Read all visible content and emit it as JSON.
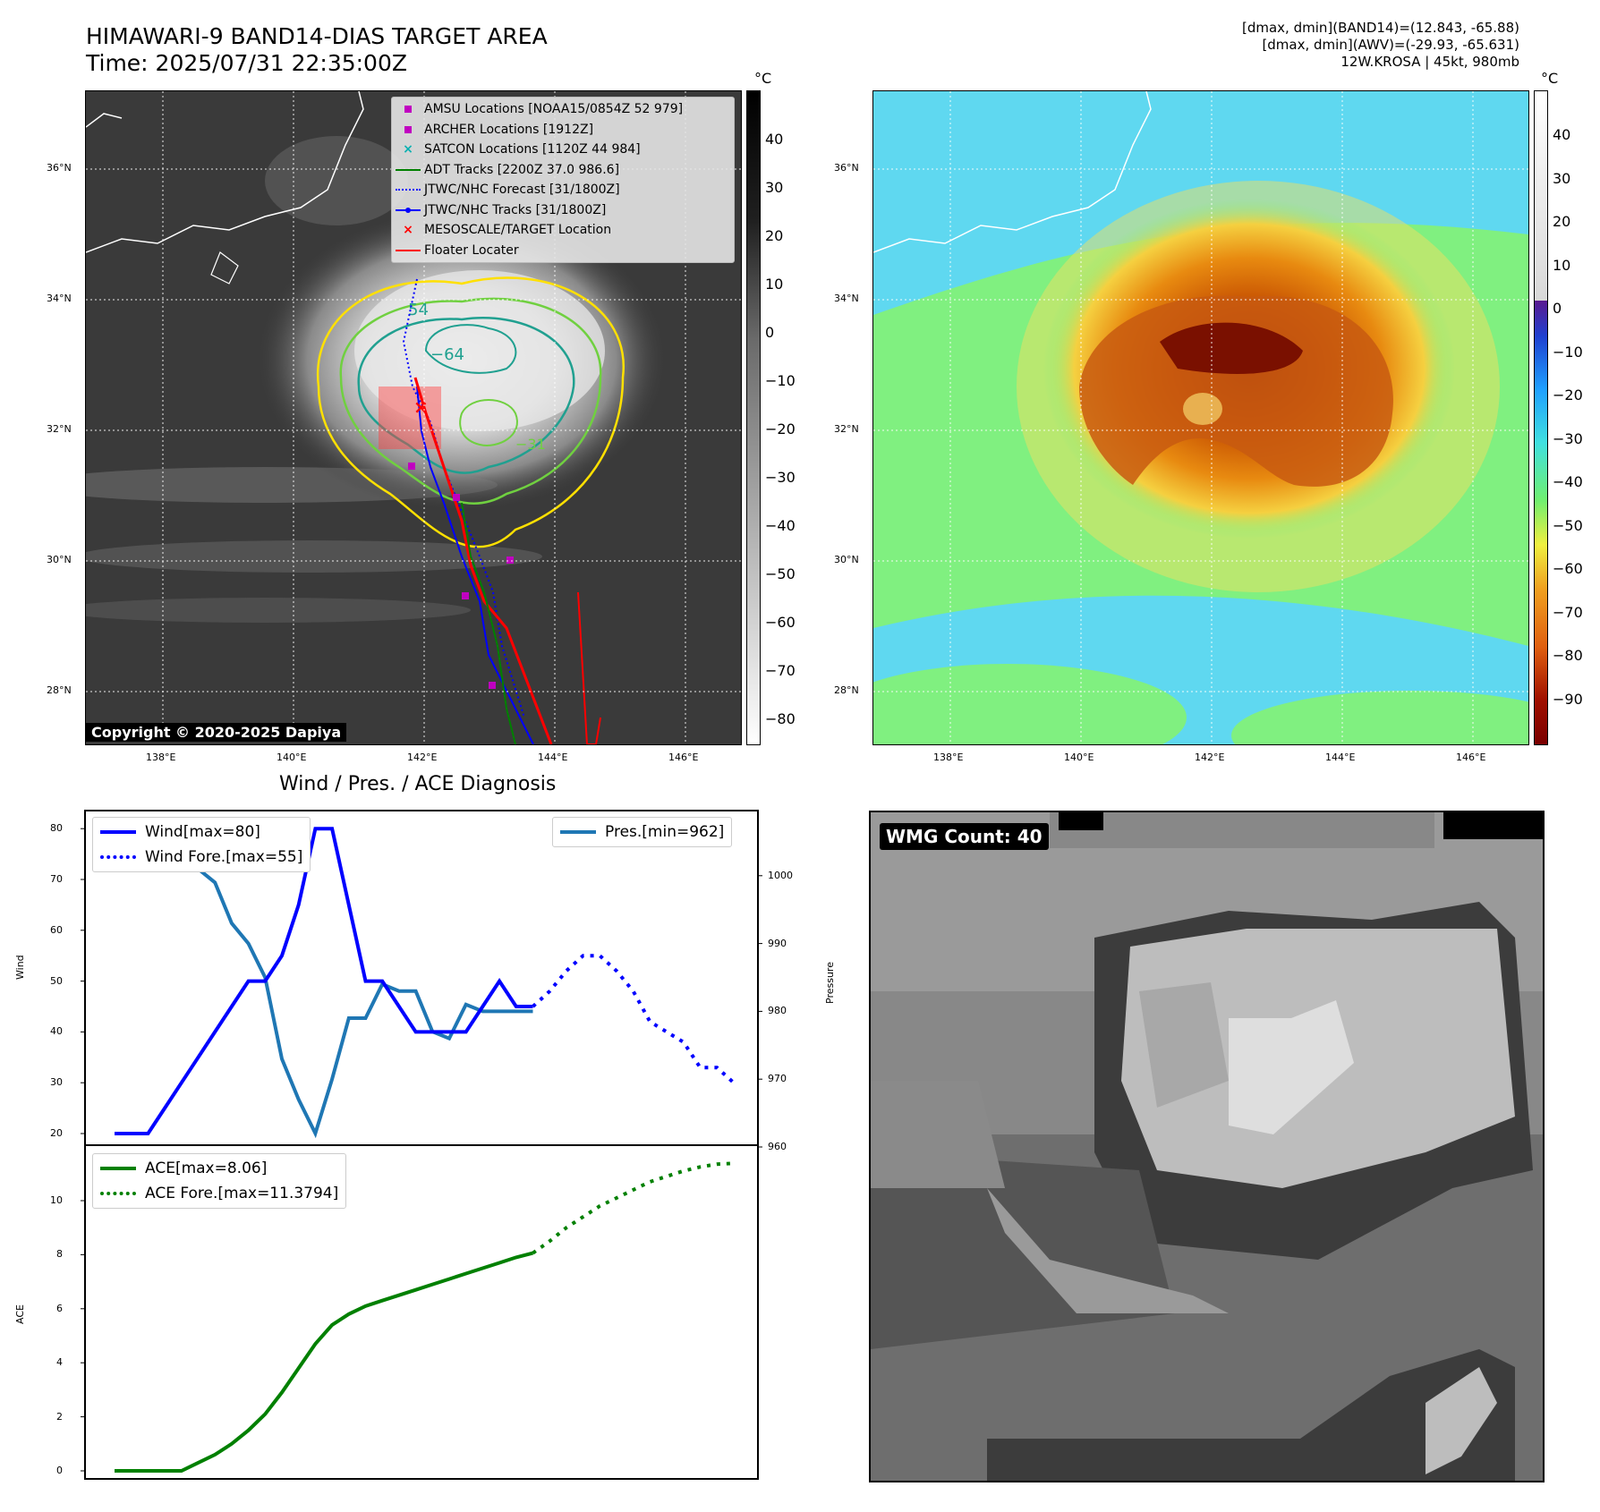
{
  "header": {
    "title_line1": "HIMAWARI-9 BAND14-DIAS TARGET AREA",
    "title_line2": "Time: 2025/07/31 22:35:00Z",
    "info_line1": "[dmax, dmin](BAND14)=(12.843, -65.88)",
    "info_line2": "[dmax, dmin](AWV)=(-29.93, -65.631)",
    "info_line3": "12W.KROSA | 45kt, 980mb"
  },
  "map_axes": {
    "lat_labels": [
      "36°N",
      "34°N",
      "32°N",
      "30°N",
      "28°N"
    ],
    "lon_labels": [
      "138°E",
      "140°E",
      "142°E",
      "144°E",
      "146°E"
    ]
  },
  "ir_panel": {
    "copyright": "Copyright © 2020-2025 Dapiya",
    "colorbar_unit": "°C",
    "colorbar_ticks": [
      "40",
      "30",
      "20",
      "10",
      "0",
      "−10",
      "−20",
      "−30",
      "−40",
      "−50",
      "−60",
      "−70",
      "−80"
    ],
    "contour_labels": [
      "54",
      "−64",
      "−31"
    ],
    "legend": [
      {
        "label": "AMSU Locations [NOAA15/0854Z 52 979]",
        "symbol": "square",
        "color": "#c000c0"
      },
      {
        "label": "ARCHER Locations [1912Z]",
        "symbol": "square",
        "color": "#c000c0"
      },
      {
        "label": "SATCON Locations [1120Z 44 984]",
        "symbol": "x",
        "color": "#00b0b0"
      },
      {
        "label": "ADT Tracks [2200Z 37.0 986.6]",
        "symbol": "line",
        "color": "#008000"
      },
      {
        "label": "JTWC/NHC Forecast [31/1800Z]",
        "symbol": "dotted",
        "color": "#0000ff"
      },
      {
        "label": "JTWC/NHC Tracks [31/1800Z]",
        "symbol": "line-dot",
        "color": "#0000ff"
      },
      {
        "label": "MESOSCALE/TARGET Location",
        "symbol": "x",
        "color": "#ff0000"
      },
      {
        "label": "Floater Locater",
        "symbol": "line",
        "color": "#ff0000"
      }
    ]
  },
  "awv_panel": {
    "colorbar_unit": "°C",
    "colorbar_ticks": [
      "40",
      "30",
      "20",
      "10",
      "0",
      "−10",
      "−20",
      "−30",
      "−40",
      "−50",
      "−60",
      "−70",
      "−80",
      "−90"
    ]
  },
  "diagnosis": {
    "title": "Wind / Pres. / ACE Diagnosis",
    "wind_axis_label": "Wind",
    "pressure_axis_label": "Pressure",
    "ace_axis_label": "ACE",
    "wind_ticks": [
      "80",
      "70",
      "60",
      "50",
      "40",
      "30",
      "20"
    ],
    "pressure_ticks": [
      "1000",
      "990",
      "980",
      "970",
      "960"
    ],
    "ace_ticks": [
      "10",
      "8",
      "6",
      "4",
      "2",
      "0"
    ],
    "legend_wind": "Wind[max=80]",
    "legend_wind_fore": "Wind Fore.[max=55]",
    "legend_pres": "Pres.[min=962]",
    "legend_ace": "ACE[max=8.06]",
    "legend_ace_fore": "ACE Fore.[max=11.3794]"
  },
  "wmg_panel": {
    "label": "WMG Count: 40"
  },
  "chart_data": [
    {
      "type": "line",
      "title": "Wind / Pres. / ACE Diagnosis",
      "ylabel": "Wind",
      "ylim": [
        18,
        82
      ],
      "series": [
        {
          "name": "Wind[max=80]",
          "color": "#0000ff",
          "style": "solid",
          "x": [
            0,
            1,
            2,
            3,
            4,
            5,
            6,
            7,
            8,
            9,
            10,
            11,
            12,
            13,
            14,
            15,
            16,
            17,
            18,
            19,
            20,
            21,
            22,
            23,
            24,
            25
          ],
          "values": [
            20,
            20,
            20,
            25,
            30,
            35,
            40,
            45,
            50,
            50,
            55,
            65,
            80,
            80,
            65,
            50,
            50,
            45,
            40,
            40,
            40,
            40,
            45,
            50,
            45,
            45
          ]
        },
        {
          "name": "Wind Fore.[max=55]",
          "color": "#0000ff",
          "style": "dotted",
          "x": [
            25,
            26,
            27,
            28,
            29,
            30,
            31,
            32,
            33,
            34,
            35,
            36,
            37
          ],
          "values": [
            45,
            48,
            52,
            55,
            55,
            52,
            48,
            42,
            40,
            38,
            33,
            33,
            30
          ]
        }
      ]
    },
    {
      "type": "line",
      "ylabel": "Pressure",
      "ylim": [
        960,
        1010
      ],
      "series": [
        {
          "name": "Pres.[min=962]",
          "color": "#1f77b4",
          "style": "solid",
          "x": [
            0,
            1,
            2,
            3,
            4,
            5,
            6,
            7,
            8,
            9,
            10,
            11,
            12,
            13,
            14,
            15,
            16,
            17,
            18,
            19,
            20,
            21,
            22,
            23,
            24,
            25
          ],
          "values": [
            1007,
            1007,
            1006,
            1005,
            1003,
            1001,
            999,
            993,
            990,
            985,
            973,
            967,
            962,
            970,
            979,
            979,
            984,
            983,
            983,
            977,
            976,
            981,
            980,
            980,
            980,
            980
          ]
        }
      ]
    },
    {
      "type": "line",
      "ylabel": "ACE",
      "ylim": [
        -0.5,
        12
      ],
      "series": [
        {
          "name": "ACE[max=8.06]",
          "color": "#008000",
          "style": "solid",
          "x": [
            0,
            2,
            4,
            5,
            6,
            7,
            8,
            9,
            10,
            11,
            12,
            13,
            14,
            15,
            16,
            17,
            18,
            19,
            20,
            21,
            22,
            23,
            24,
            25
          ],
          "values": [
            0,
            0,
            0,
            0.3,
            0.6,
            1.0,
            1.5,
            2.1,
            2.9,
            3.8,
            4.7,
            5.4,
            5.8,
            6.1,
            6.3,
            6.5,
            6.7,
            6.9,
            7.1,
            7.3,
            7.5,
            7.7,
            7.9,
            8.06
          ]
        },
        {
          "name": "ACE Fore.[max=11.3794]",
          "color": "#008000",
          "style": "dotted",
          "x": [
            25,
            26,
            27,
            28,
            29,
            30,
            31,
            32,
            33,
            34,
            35,
            36,
            37
          ],
          "values": [
            8.06,
            8.5,
            9.0,
            9.4,
            9.8,
            10.1,
            10.4,
            10.7,
            10.9,
            11.1,
            11.25,
            11.35,
            11.38
          ]
        }
      ]
    }
  ]
}
